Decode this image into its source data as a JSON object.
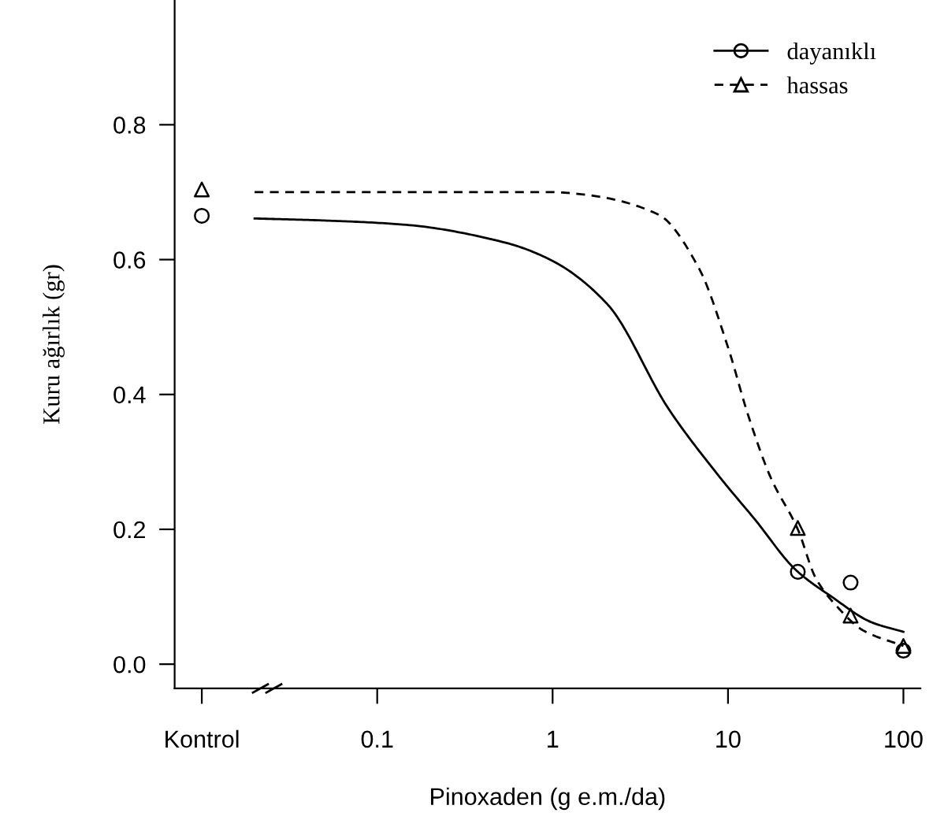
{
  "chart_data": {
    "type": "scatter",
    "xlabel": "Pinoxaden (g e.m./da)",
    "ylabel": "Kuru ağırlık (gr)",
    "log": "x",
    "xlim": [
      0.007,
      125
    ],
    "ylim": [
      -0.036,
      0.985
    ],
    "xticks": [
      {
        "value": 0.01,
        "label": "Kontrol"
      },
      0.1,
      1,
      10,
      100
    ],
    "yticks": [
      {
        "value": 0,
        "label": "0.0"
      },
      0.2,
      0.4,
      0.6,
      0.8
    ],
    "grid": false,
    "legend": "top right",
    "series": [
      {
        "name": "dayanıklı",
        "color": "#000000",
        "marker": "circle",
        "line_style": "solid",
        "x": [
          0.01,
          25,
          50,
          100
        ],
        "values": [
          0.665,
          0.137,
          0.121,
          0.02
        ]
      },
      {
        "name": "hassas",
        "color": "#000000",
        "marker": "triangle",
        "line_style": "dashed",
        "x": [
          0.01,
          25,
          50,
          100
        ],
        "values": [
          0.704,
          0.202,
          0.072,
          0.027
        ]
      },
      {
        "type": "line",
        "color": "#000000",
        "line_style": "solid",
        "x": [
          0.02,
          0.05,
          0.14,
          0.54,
          1,
          2.05,
          4.6,
          9,
          14.3,
          24.3,
          39,
          66,
          100
        ],
        "values": [
          0.661,
          0.658,
          0.652,
          0.625,
          0.598,
          0.534,
          0.378,
          0.277,
          0.214,
          0.14,
          0.1,
          0.062,
          0.048
        ]
      },
      {
        "type": "line",
        "color": "#000000",
        "line_style": "dashed",
        "x": [
          0.02,
          0.1,
          1,
          1.45,
          4,
          6.8,
          10,
          13,
          17.5,
          25,
          31.6,
          42,
          59,
          100
        ],
        "values": [
          0.7,
          0.7,
          0.7,
          0.697,
          0.667,
          0.588,
          0.47,
          0.37,
          0.277,
          0.2,
          0.128,
          0.085,
          0.05,
          0.027
        ]
      }
    ]
  }
}
